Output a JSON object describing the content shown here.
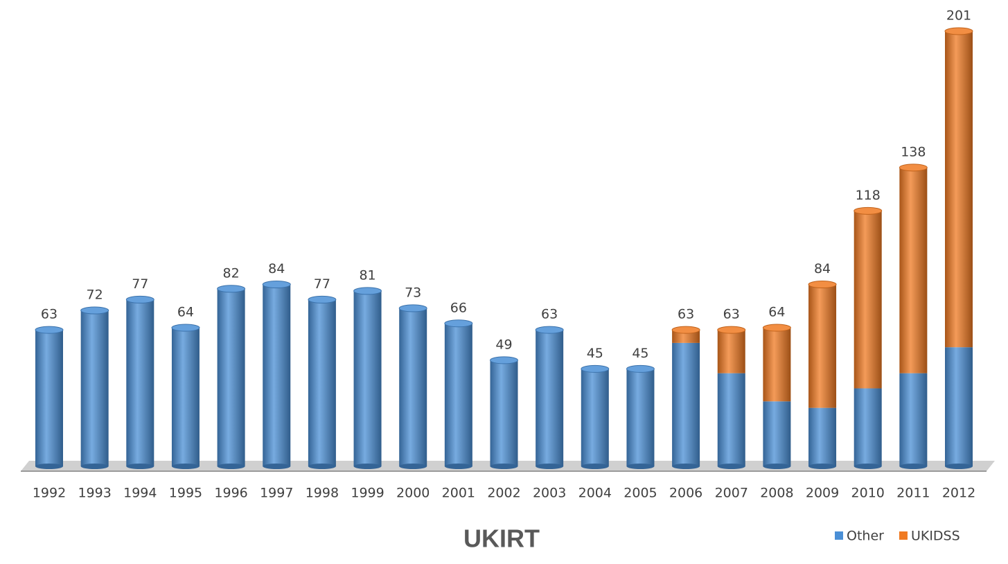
{
  "chart_data": {
    "type": "bar",
    "stacked": true,
    "title": "UKIRT",
    "categories": [
      "1992",
      "1993",
      "1994",
      "1995",
      "1996",
      "1997",
      "1998",
      "1999",
      "2000",
      "2001",
      "2002",
      "2003",
      "2004",
      "2005",
      "2006",
      "2007",
      "2008",
      "2009",
      "2010",
      "2011",
      "2012"
    ],
    "series": [
      {
        "name": "Other",
        "color": "#4a8fd6",
        "values": [
          63,
          72,
          77,
          64,
          82,
          84,
          77,
          81,
          73,
          66,
          49,
          63,
          45,
          45,
          57,
          43,
          30,
          27,
          36,
          43,
          55
        ]
      },
      {
        "name": "UKIDSS",
        "color": "#f07a22",
        "values": [
          null,
          null,
          null,
          null,
          null,
          null,
          null,
          null,
          null,
          null,
          null,
          null,
          null,
          null,
          6,
          20,
          34,
          57,
          82,
          95,
          146
        ]
      }
    ],
    "totals": [
      63,
      72,
      77,
      64,
      82,
      84,
      77,
      81,
      73,
      66,
      49,
      63,
      45,
      45,
      63,
      63,
      64,
      84,
      118,
      138,
      201
    ],
    "legend": "bottom-right"
  }
}
